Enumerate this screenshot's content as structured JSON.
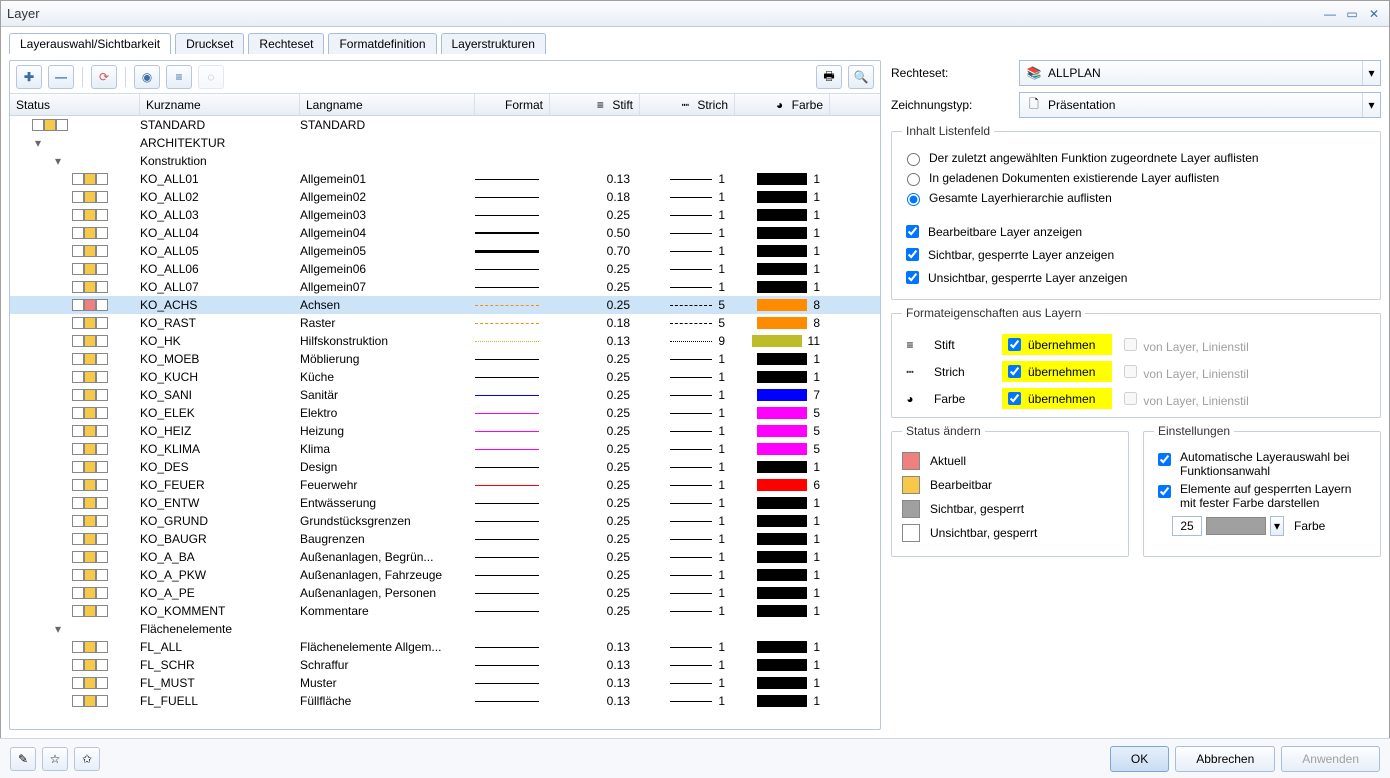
{
  "window": {
    "title": "Layer"
  },
  "tabs": [
    "Layerauswahl/Sichtbarkeit",
    "Druckset",
    "Rechteset",
    "Formatdefinition",
    "Layerstrukturen"
  ],
  "active_tab": 0,
  "columns": {
    "status": "Status",
    "kurz": "Kurzname",
    "lang": "Langname",
    "format": "Format",
    "stift": "Stift",
    "strich": "Strich",
    "farbe": "Farbe"
  },
  "tree": [
    {
      "type": "leaf",
      "depth": 0,
      "status": [
        "white",
        "yellow",
        "white"
      ],
      "kurz": "STANDARD",
      "lang": "STANDARD"
    },
    {
      "type": "group",
      "depth": 0,
      "expanded": true,
      "label": "ARCHITEKTUR"
    },
    {
      "type": "group",
      "depth": 1,
      "expanded": true,
      "label": "Konstruktion"
    },
    {
      "type": "leaf",
      "depth": 2,
      "status": [
        "white",
        "yellow",
        "white"
      ],
      "kurz": "KO_ALL01",
      "lang": "Allgemein01",
      "fmt_color": "#000000",
      "fmt_w": 1,
      "stift": "0.13",
      "sstyle": "solid",
      "strich": "1",
      "farbe": "1",
      "color": "#000000"
    },
    {
      "type": "leaf",
      "depth": 2,
      "status": [
        "white",
        "yellow",
        "white"
      ],
      "kurz": "KO_ALL02",
      "lang": "Allgemein02",
      "fmt_color": "#000000",
      "fmt_w": 1,
      "stift": "0.18",
      "sstyle": "solid",
      "strich": "1",
      "farbe": "1",
      "color": "#000000"
    },
    {
      "type": "leaf",
      "depth": 2,
      "status": [
        "white",
        "yellow",
        "white"
      ],
      "kurz": "KO_ALL03",
      "lang": "Allgemein03",
      "fmt_color": "#000000",
      "fmt_w": 1,
      "stift": "0.25",
      "sstyle": "solid",
      "strich": "1",
      "farbe": "1",
      "color": "#000000"
    },
    {
      "type": "leaf",
      "depth": 2,
      "status": [
        "white",
        "yellow",
        "white"
      ],
      "kurz": "KO_ALL04",
      "lang": "Allgemein04",
      "fmt_color": "#000000",
      "fmt_w": 2,
      "stift": "0.50",
      "sstyle": "solid",
      "strich": "1",
      "farbe": "1",
      "color": "#000000"
    },
    {
      "type": "leaf",
      "depth": 2,
      "status": [
        "white",
        "yellow",
        "white"
      ],
      "kurz": "KO_ALL05",
      "lang": "Allgemein05",
      "fmt_color": "#000000",
      "fmt_w": 3,
      "stift": "0.70",
      "sstyle": "solid",
      "strich": "1",
      "farbe": "1",
      "color": "#000000"
    },
    {
      "type": "leaf",
      "depth": 2,
      "status": [
        "white",
        "yellow",
        "white"
      ],
      "kurz": "KO_ALL06",
      "lang": "Allgemein06",
      "fmt_color": "#000000",
      "fmt_w": 1,
      "stift": "0.25",
      "sstyle": "solid",
      "strich": "1",
      "farbe": "1",
      "color": "#000000"
    },
    {
      "type": "leaf",
      "depth": 2,
      "status": [
        "white",
        "yellow",
        "white"
      ],
      "kurz": "KO_ALL07",
      "lang": "Allgemein07",
      "fmt_color": "#000000",
      "fmt_w": 1,
      "stift": "0.25",
      "sstyle": "solid",
      "strich": "1",
      "farbe": "1",
      "color": "#000000"
    },
    {
      "type": "leaf",
      "depth": 2,
      "selected": true,
      "status": [
        "white",
        "red",
        "white"
      ],
      "kurz": "KO_ACHS",
      "lang": "Achsen",
      "fmt_color": "#ff8c00",
      "fmt_w": 1,
      "fmt_style": "dashdot",
      "stift": "0.25",
      "sstyle": "dashdot",
      "strich": "5",
      "farbe": "8",
      "color": "#ff8c00"
    },
    {
      "type": "leaf",
      "depth": 2,
      "status": [
        "white",
        "yellow",
        "white"
      ],
      "kurz": "KO_RAST",
      "lang": "Raster",
      "fmt_color": "#ff8c00",
      "fmt_w": 1,
      "fmt_style": "dashdot",
      "stift": "0.18",
      "sstyle": "dashdot",
      "strich": "5",
      "farbe": "8",
      "color": "#ff8c00"
    },
    {
      "type": "leaf",
      "depth": 2,
      "status": [
        "white",
        "yellow",
        "white"
      ],
      "kurz": "KO_HK",
      "lang": "Hilfskonstruktion",
      "fmt_color": "#bdbd2a",
      "fmt_w": 1,
      "fmt_style": "dotted",
      "stift": "0.13",
      "sstyle": "dotted",
      "strich": "9",
      "farbe": "11",
      "color": "#bdbd2a"
    },
    {
      "type": "leaf",
      "depth": 2,
      "status": [
        "white",
        "yellow",
        "white"
      ],
      "kurz": "KO_MOEB",
      "lang": "Möblierung",
      "fmt_color": "#000000",
      "fmt_w": 1,
      "stift": "0.25",
      "sstyle": "solid",
      "strich": "1",
      "farbe": "1",
      "color": "#000000"
    },
    {
      "type": "leaf",
      "depth": 2,
      "status": [
        "white",
        "yellow",
        "white"
      ],
      "kurz": "KO_KUCH",
      "lang": "Küche",
      "fmt_color": "#000000",
      "fmt_w": 1,
      "stift": "0.25",
      "sstyle": "solid",
      "strich": "1",
      "farbe": "1",
      "color": "#000000"
    },
    {
      "type": "leaf",
      "depth": 2,
      "status": [
        "white",
        "yellow",
        "white"
      ],
      "kurz": "KO_SANI",
      "lang": "Sanitär",
      "fmt_color": "#0000ff",
      "fmt_w": 1,
      "stift": "0.25",
      "sstyle": "solid",
      "strich": "1",
      "farbe": "7",
      "color": "#0000ff"
    },
    {
      "type": "leaf",
      "depth": 2,
      "status": [
        "white",
        "yellow",
        "white"
      ],
      "kurz": "KO_ELEK",
      "lang": "Elektro",
      "fmt_color": "#ff00ff",
      "fmt_w": 1,
      "stift": "0.25",
      "sstyle": "solid",
      "strich": "1",
      "farbe": "5",
      "color": "#ff00ff"
    },
    {
      "type": "leaf",
      "depth": 2,
      "status": [
        "white",
        "yellow",
        "white"
      ],
      "kurz": "KO_HEIZ",
      "lang": "Heizung",
      "fmt_color": "#ff00ff",
      "fmt_w": 1,
      "stift": "0.25",
      "sstyle": "solid",
      "strich": "1",
      "farbe": "5",
      "color": "#ff00ff"
    },
    {
      "type": "leaf",
      "depth": 2,
      "status": [
        "white",
        "yellow",
        "white"
      ],
      "kurz": "KO_KLIMA",
      "lang": "Klima",
      "fmt_color": "#ff00ff",
      "fmt_w": 1,
      "stift": "0.25",
      "sstyle": "solid",
      "strich": "1",
      "farbe": "5",
      "color": "#ff00ff"
    },
    {
      "type": "leaf",
      "depth": 2,
      "status": [
        "white",
        "yellow",
        "white"
      ],
      "kurz": "KO_DES",
      "lang": "Design",
      "fmt_color": "#000000",
      "fmt_w": 1,
      "stift": "0.25",
      "sstyle": "solid",
      "strich": "1",
      "farbe": "1",
      "color": "#000000"
    },
    {
      "type": "leaf",
      "depth": 2,
      "status": [
        "white",
        "yellow",
        "white"
      ],
      "kurz": "KO_FEUER",
      "lang": "Feuerwehr",
      "fmt_color": "#ff0000",
      "fmt_w": 1,
      "stift": "0.25",
      "sstyle": "solid",
      "strich": "1",
      "farbe": "6",
      "color": "#ff0000"
    },
    {
      "type": "leaf",
      "depth": 2,
      "status": [
        "white",
        "yellow",
        "white"
      ],
      "kurz": "KO_ENTW",
      "lang": "Entwässerung",
      "fmt_color": "#000000",
      "fmt_w": 1,
      "stift": "0.25",
      "sstyle": "solid",
      "strich": "1",
      "farbe": "1",
      "color": "#000000"
    },
    {
      "type": "leaf",
      "depth": 2,
      "status": [
        "white",
        "yellow",
        "white"
      ],
      "kurz": "KO_GRUND",
      "lang": "Grundstücksgrenzen",
      "fmt_color": "#000000",
      "fmt_w": 1,
      "stift": "0.25",
      "sstyle": "solid",
      "strich": "1",
      "farbe": "1",
      "color": "#000000"
    },
    {
      "type": "leaf",
      "depth": 2,
      "status": [
        "white",
        "yellow",
        "white"
      ],
      "kurz": "KO_BAUGR",
      "lang": "Baugrenzen",
      "fmt_color": "#000000",
      "fmt_w": 1,
      "stift": "0.25",
      "sstyle": "solid",
      "strich": "1",
      "farbe": "1",
      "color": "#000000"
    },
    {
      "type": "leaf",
      "depth": 2,
      "status": [
        "white",
        "yellow",
        "white"
      ],
      "kurz": "KO_A_BA",
      "lang": "Außenanlagen, Begrün...",
      "fmt_color": "#000000",
      "fmt_w": 1,
      "stift": "0.25",
      "sstyle": "solid",
      "strich": "1",
      "farbe": "1",
      "color": "#000000"
    },
    {
      "type": "leaf",
      "depth": 2,
      "status": [
        "white",
        "yellow",
        "white"
      ],
      "kurz": "KO_A_PKW",
      "lang": "Außenanlagen, Fahrzeuge",
      "fmt_color": "#000000",
      "fmt_w": 1,
      "stift": "0.25",
      "sstyle": "solid",
      "strich": "1",
      "farbe": "1",
      "color": "#000000"
    },
    {
      "type": "leaf",
      "depth": 2,
      "status": [
        "white",
        "yellow",
        "white"
      ],
      "kurz": "KO_A_PE",
      "lang": "Außenanlagen, Personen",
      "fmt_color": "#000000",
      "fmt_w": 1,
      "stift": "0.25",
      "sstyle": "solid",
      "strich": "1",
      "farbe": "1",
      "color": "#000000"
    },
    {
      "type": "leaf",
      "depth": 2,
      "status": [
        "white",
        "yellow",
        "white"
      ],
      "kurz": "KO_KOMMENT",
      "lang": "Kommentare",
      "fmt_color": "#000000",
      "fmt_w": 1,
      "stift": "0.25",
      "sstyle": "solid",
      "strich": "1",
      "farbe": "1",
      "color": "#000000"
    },
    {
      "type": "group",
      "depth": 1,
      "expanded": true,
      "label": "Flächenelemente"
    },
    {
      "type": "leaf",
      "depth": 2,
      "status": [
        "white",
        "yellow",
        "white"
      ],
      "kurz": "FL_ALL",
      "lang": "Flächenelemente Allgem...",
      "fmt_color": "#000000",
      "fmt_w": 1,
      "stift": "0.13",
      "sstyle": "solid",
      "strich": "1",
      "farbe": "1",
      "color": "#000000"
    },
    {
      "type": "leaf",
      "depth": 2,
      "status": [
        "white",
        "yellow",
        "white"
      ],
      "kurz": "FL_SCHR",
      "lang": "Schraffur",
      "fmt_color": "#000000",
      "fmt_w": 1,
      "stift": "0.13",
      "sstyle": "solid",
      "strich": "1",
      "farbe": "1",
      "color": "#000000"
    },
    {
      "type": "leaf",
      "depth": 2,
      "status": [
        "white",
        "yellow",
        "white"
      ],
      "kurz": "FL_MUST",
      "lang": "Muster",
      "fmt_color": "#000000",
      "fmt_w": 1,
      "stift": "0.13",
      "sstyle": "solid",
      "strich": "1",
      "farbe": "1",
      "color": "#000000"
    },
    {
      "type": "leaf",
      "depth": 2,
      "status": [
        "white",
        "yellow",
        "white"
      ],
      "kurz": "FL_FUELL",
      "lang": "Füllfläche",
      "fmt_color": "#000000",
      "fmt_w": 1,
      "stift": "0.13",
      "sstyle": "solid",
      "strich": "1",
      "farbe": "1",
      "color": "#000000"
    }
  ],
  "right": {
    "rechteset_label": "Rechteset:",
    "rechteset_value": "ALLPLAN",
    "zeichnungstyp_label": "Zeichnungstyp:",
    "zeichnungstyp_value": "Präsentation",
    "inhalt_legend": "Inhalt Listenfeld",
    "radios": [
      "Der zuletzt angewählten Funktion zugeordnete Layer auflisten",
      "In geladenen Dokumenten existierende Layer auflisten",
      "Gesamte Layerhierarchie auflisten"
    ],
    "radio_selected": 2,
    "checks": [
      {
        "label": "Bearbeitbare Layer anzeigen",
        "checked": true
      },
      {
        "label": "Sichtbar, gesperrte Layer anzeigen",
        "checked": true
      },
      {
        "label": "Unsichtbar, gesperrte Layer anzeigen",
        "checked": true
      }
    ],
    "fmt_legend": "Formateigenschaften aus Layern",
    "fmt_rows": [
      {
        "icon": "pen-icon",
        "label": "Stift",
        "apply": "übernehmen",
        "dim": "von Layer, Linienstil"
      },
      {
        "icon": "dash-icon",
        "label": "Strich",
        "apply": "übernehmen",
        "dim": "von Layer, Linienstil"
      },
      {
        "icon": "color-icon",
        "label": "Farbe",
        "apply": "übernehmen",
        "dim": "von Layer, Linienstil"
      }
    ],
    "status_legend": "Status ändern",
    "status_items": [
      {
        "color": "#f08080",
        "label": "Aktuell"
      },
      {
        "color": "#f7c948",
        "label": "Bearbeitbar"
      },
      {
        "color": "#a0a0a0",
        "label": "Sichtbar, gesperrt"
      },
      {
        "color": "#ffffff",
        "label": "Unsichtbar, gesperrt"
      }
    ],
    "einst_legend": "Einstellungen",
    "einst_checks": [
      {
        "label": "Automatische Layerauswahl bei Funktionsanwahl",
        "checked": true
      },
      {
        "label": "Elemente auf gesperrten Layern mit fester Farbe darstellen",
        "checked": true
      }
    ],
    "einst_color_value": "25",
    "einst_color_swatch": "#a0a0a0",
    "einst_color_label": "Farbe"
  },
  "footer": {
    "ok": "OK",
    "cancel": "Abbrechen",
    "apply": "Anwenden"
  }
}
